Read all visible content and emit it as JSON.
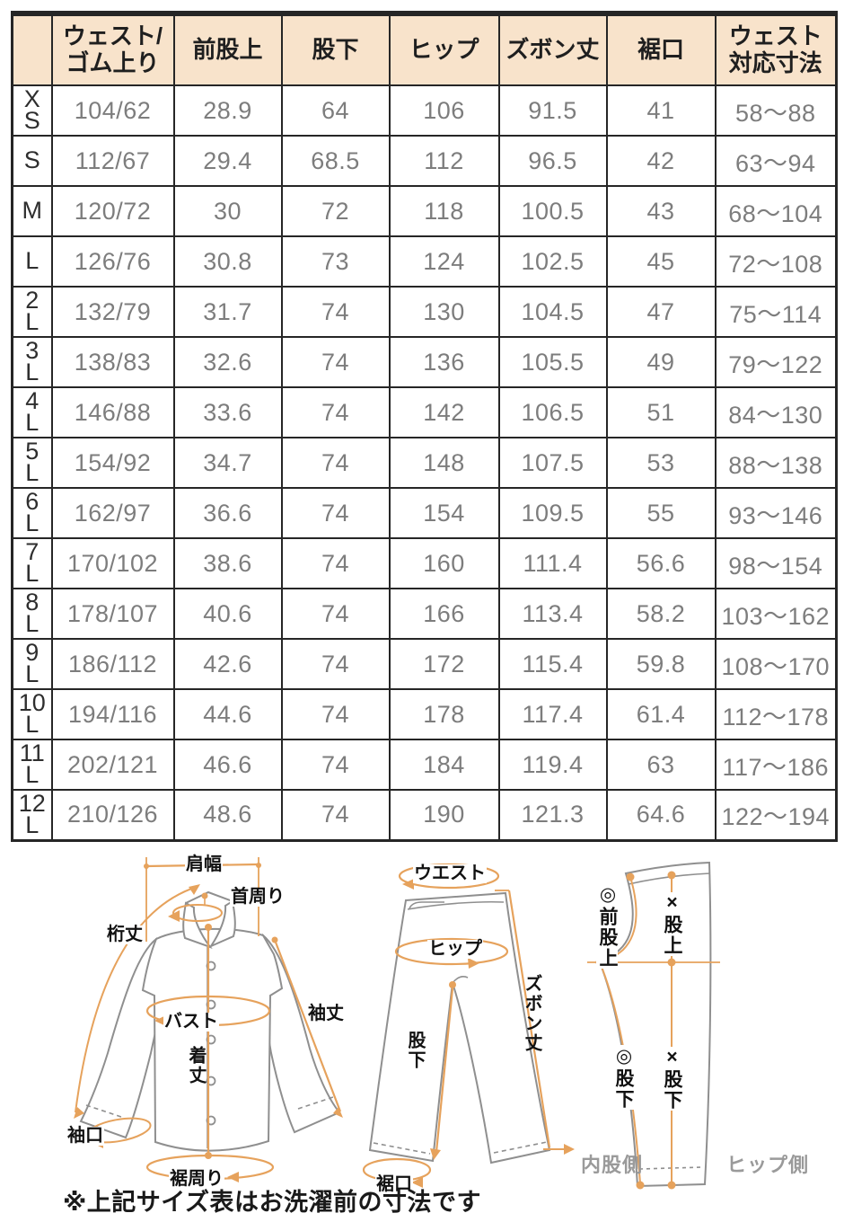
{
  "colors": {
    "header_bg": "#f8e3cb",
    "table_border": "#262626",
    "value_text": "#7d7d7d",
    "size_text": "#2e2e2e",
    "accent_orange": "#e6a25c",
    "garment_outline": "#8f8f8f",
    "side_label_gray": "#9a9a9a"
  },
  "table": {
    "columns": [
      "ウェスト/\nゴム上り",
      "前股上",
      "股下",
      "ヒップ",
      "ズボン丈",
      "裾口",
      "ウェスト\n対応寸法"
    ],
    "rows": [
      {
        "size": "XS",
        "size_display": "X\nS",
        "values": [
          "104/62",
          "28.9",
          "64",
          "106",
          "91.5",
          "41",
          "58～88"
        ]
      },
      {
        "size": "S",
        "size_display": "S",
        "values": [
          "112/67",
          "29.4",
          "68.5",
          "112",
          "96.5",
          "42",
          "63～94"
        ]
      },
      {
        "size": "M",
        "size_display": "M",
        "values": [
          "120/72",
          "30",
          "72",
          "118",
          "100.5",
          "43",
          "68～104"
        ]
      },
      {
        "size": "L",
        "size_display": "L",
        "values": [
          "126/76",
          "30.8",
          "73",
          "124",
          "102.5",
          "45",
          "72～108"
        ]
      },
      {
        "size": "2L",
        "size_display": "2\nL",
        "values": [
          "132/79",
          "31.7",
          "74",
          "130",
          "104.5",
          "47",
          "75～114"
        ]
      },
      {
        "size": "3L",
        "size_display": "3\nL",
        "values": [
          "138/83",
          "32.6",
          "74",
          "136",
          "105.5",
          "49",
          "79～122"
        ]
      },
      {
        "size": "4L",
        "size_display": "4\nL",
        "values": [
          "146/88",
          "33.6",
          "74",
          "142",
          "106.5",
          "51",
          "84～130"
        ]
      },
      {
        "size": "5L",
        "size_display": "5\nL",
        "values": [
          "154/92",
          "34.7",
          "74",
          "148",
          "107.5",
          "53",
          "88～138"
        ]
      },
      {
        "size": "6L",
        "size_display": "6\nL",
        "values": [
          "162/97",
          "36.6",
          "74",
          "154",
          "109.5",
          "55",
          "93～146"
        ]
      },
      {
        "size": "7L",
        "size_display": "7\nL",
        "values": [
          "170/102",
          "38.6",
          "74",
          "160",
          "111.4",
          "56.6",
          "98～154"
        ]
      },
      {
        "size": "8L",
        "size_display": "8\nL",
        "values": [
          "178/107",
          "40.6",
          "74",
          "166",
          "113.4",
          "58.2",
          "103～162"
        ]
      },
      {
        "size": "9L",
        "size_display": "9\nL",
        "values": [
          "186/112",
          "42.6",
          "74",
          "172",
          "115.4",
          "59.8",
          "108～170"
        ]
      },
      {
        "size": "10L",
        "size_display": "10\nL",
        "values": [
          "194/116",
          "44.6",
          "74",
          "178",
          "117.4",
          "61.4",
          "112～178"
        ]
      },
      {
        "size": "11L",
        "size_display": "11\nL",
        "values": [
          "202/121",
          "46.6",
          "74",
          "184",
          "119.4",
          "63",
          "117～186"
        ]
      },
      {
        "size": "12L",
        "size_display": "12\nL",
        "values": [
          "210/126",
          "48.6",
          "74",
          "190",
          "121.3",
          "64.6",
          "122～194"
        ]
      }
    ]
  },
  "shirt_diagram": {
    "shoulder_width": "肩幅",
    "neck": "首周り",
    "yuki": "桁丈",
    "bust": "バスト",
    "body_length": "着丈",
    "sleeve_length": "袖丈",
    "cuff": "袖口",
    "hem_around": "裾周り"
  },
  "pants_diagram": {
    "waist": "ウエスト",
    "hip": "ヒップ",
    "pants_length": "ズボン丈",
    "inseam": "股下",
    "hem": "裾口"
  },
  "pattern_diagram": {
    "front_rise": "◎前股上",
    "rise": "×股上",
    "inseam_a": "◎股下",
    "inseam_b": "×股下",
    "inner_side": "内股側",
    "hip_side": "ヒップ側"
  },
  "footnote": "※上記サイズ表はお洗濯前の寸法です"
}
